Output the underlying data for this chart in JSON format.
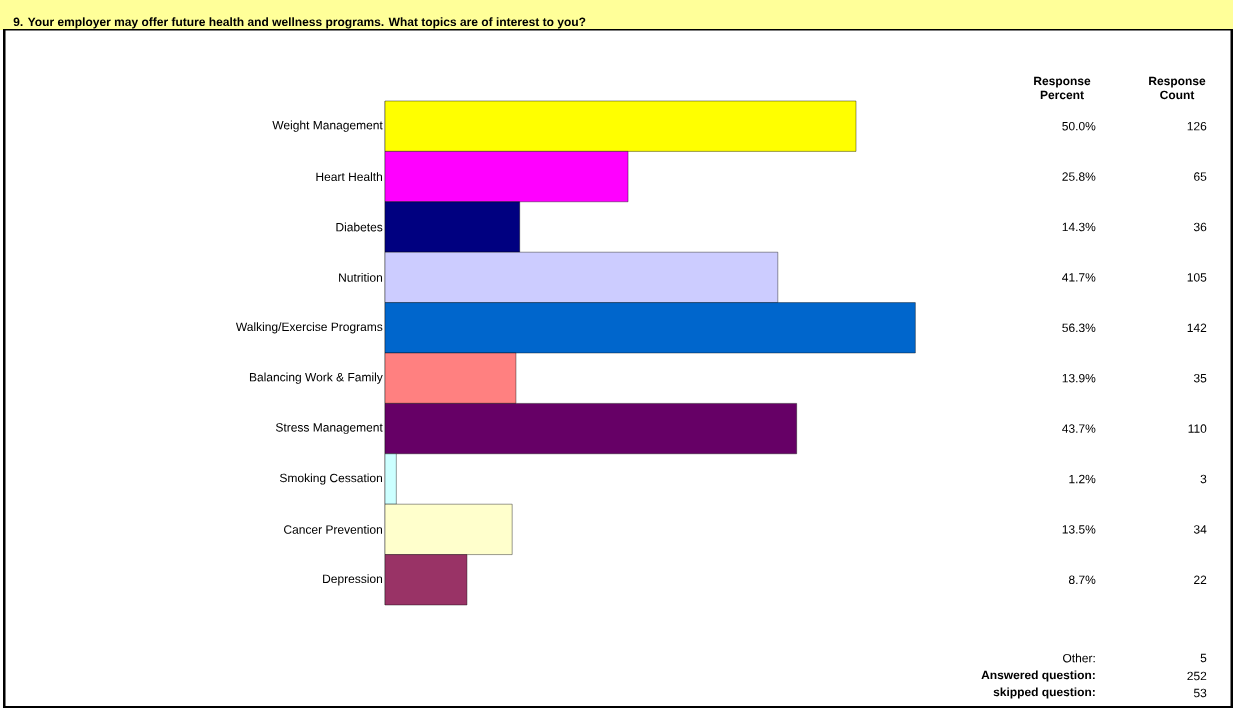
{
  "chart_data": {
    "type": "bar",
    "orientation": "horizontal",
    "title": "9.  Your employer may offer future health and wellness programs. What topics are of interest to you?",
    "categories": [
      "Weight Management",
      "Heart Health",
      "Diabetes",
      "Nutrition",
      "Walking/Exercise Programs",
      "Balancing Work & Family",
      "Stress Management",
      "Smoking Cessation",
      "Cancer Prevention",
      "Depression"
    ],
    "values": [
      50.0,
      25.8,
      14.3,
      41.7,
      56.3,
      13.9,
      43.7,
      1.2,
      13.5,
      8.7
    ],
    "colors": [
      "#ffff00",
      "#ff00ff",
      "#000080",
      "#ccccff",
      "#0066cc",
      "#ff8080",
      "#660066",
      "#ccffff",
      "#ffffcc",
      "#993366"
    ],
    "value_labels": [
      "50.0%",
      "25.8%",
      "14.3%",
      "41.7%",
      "56.3%",
      "13.9%",
      "43.7%",
      "1.2%",
      "13.5%",
      "8.7%"
    ],
    "annotations": [
      "Response Percent",
      "Response Count",
      "126",
      "65",
      "36",
      "105",
      "142",
      "35",
      "110",
      "3",
      "34",
      "22",
      "Other:",
      "5",
      "Answered question:",
      "252",
      "skipped question:",
      "53"
    ]
  }
}
